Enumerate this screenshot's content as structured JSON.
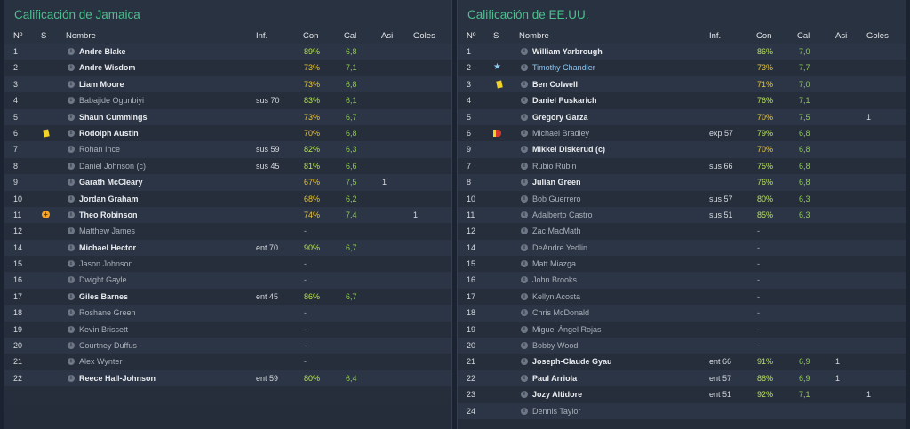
{
  "left": {
    "title": "Calificación de Jamaica",
    "headers": {
      "num": "Nº",
      "s": "S",
      "name": "Nombre",
      "inf": "Inf.",
      "con": "Con",
      "cal": "Cal",
      "asi": "Asi",
      "goles": "Goles"
    },
    "rows": [
      {
        "num": "1",
        "name": "Andre Blake",
        "active": true,
        "inf": "",
        "con": "89%",
        "con_color": "green",
        "cal": "6,8",
        "asi": "",
        "goles": "",
        "icon": ""
      },
      {
        "num": "2",
        "name": "Andre Wisdom",
        "active": true,
        "inf": "",
        "con": "73%",
        "con_color": "yellow",
        "cal": "7,1",
        "asi": "",
        "goles": "",
        "icon": ""
      },
      {
        "num": "3",
        "name": "Liam Moore",
        "active": true,
        "inf": "",
        "con": "73%",
        "con_color": "yellow",
        "cal": "6,8",
        "asi": "",
        "goles": "",
        "icon": ""
      },
      {
        "num": "4",
        "name": "Babajide Ogunbiyi",
        "active": false,
        "inf": "sus 70",
        "con": "83%",
        "con_color": "green",
        "cal": "6,1",
        "asi": "",
        "goles": "",
        "icon": ""
      },
      {
        "num": "5",
        "name": "Shaun Cummings",
        "active": true,
        "inf": "",
        "con": "73%",
        "con_color": "yellow",
        "cal": "6,7",
        "asi": "",
        "goles": "",
        "icon": ""
      },
      {
        "num": "6",
        "name": "Rodolph Austin",
        "active": true,
        "inf": "",
        "con": "70%",
        "con_color": "yellow",
        "cal": "6,8",
        "asi": "",
        "goles": "",
        "icon": "yellow-card"
      },
      {
        "num": "7",
        "name": "Rohan Ince",
        "active": false,
        "inf": "sus 59",
        "con": "82%",
        "con_color": "green",
        "cal": "6,3",
        "asi": "",
        "goles": "",
        "icon": ""
      },
      {
        "num": "8",
        "name": "Daniel Johnson (c)",
        "active": false,
        "inf": "sus 45",
        "con": "81%",
        "con_color": "green",
        "cal": "6,6",
        "asi": "",
        "goles": "",
        "icon": ""
      },
      {
        "num": "9",
        "name": "Garath McCleary",
        "active": true,
        "inf": "",
        "con": "67%",
        "con_color": "yellow",
        "cal": "7,5",
        "asi": "1",
        "goles": "",
        "icon": ""
      },
      {
        "num": "10",
        "name": "Jordan Graham",
        "active": true,
        "inf": "",
        "con": "68%",
        "con_color": "yellow",
        "cal": "6,2",
        "asi": "",
        "goles": "",
        "icon": ""
      },
      {
        "num": "11",
        "name": "Theo Robinson",
        "active": true,
        "inf": "",
        "con": "74%",
        "con_color": "yellow",
        "cal": "7,4",
        "asi": "",
        "goles": "1",
        "icon": "sub"
      },
      {
        "num": "12",
        "name": "Matthew James",
        "active": false,
        "inf": "",
        "con": "-",
        "con_color": "dash",
        "cal": "",
        "asi": "",
        "goles": "",
        "icon": ""
      },
      {
        "num": "14",
        "name": "Michael Hector",
        "active": true,
        "inf": "ent 70",
        "con": "90%",
        "con_color": "green",
        "cal": "6,7",
        "asi": "",
        "goles": "",
        "icon": ""
      },
      {
        "num": "15",
        "name": "Jason Johnson",
        "active": false,
        "inf": "",
        "con": "-",
        "con_color": "dash",
        "cal": "",
        "asi": "",
        "goles": "",
        "icon": ""
      },
      {
        "num": "16",
        "name": "Dwight Gayle",
        "active": false,
        "inf": "",
        "con": "-",
        "con_color": "dash",
        "cal": "",
        "asi": "",
        "goles": "",
        "icon": ""
      },
      {
        "num": "17",
        "name": "Giles Barnes",
        "active": true,
        "inf": "ent 45",
        "con": "86%",
        "con_color": "green",
        "cal": "6,7",
        "asi": "",
        "goles": "",
        "icon": ""
      },
      {
        "num": "18",
        "name": "Roshane Green",
        "active": false,
        "inf": "",
        "con": "-",
        "con_color": "dash",
        "cal": "",
        "asi": "",
        "goles": "",
        "icon": ""
      },
      {
        "num": "19",
        "name": "Kevin Brissett",
        "active": false,
        "inf": "",
        "con": "-",
        "con_color": "dash",
        "cal": "",
        "asi": "",
        "goles": "",
        "icon": ""
      },
      {
        "num": "20",
        "name": "Courtney Duffus",
        "active": false,
        "inf": "",
        "con": "-",
        "con_color": "dash",
        "cal": "",
        "asi": "",
        "goles": "",
        "icon": ""
      },
      {
        "num": "21",
        "name": "Alex Wynter",
        "active": false,
        "inf": "",
        "con": "-",
        "con_color": "dash",
        "cal": "",
        "asi": "",
        "goles": "",
        "icon": ""
      },
      {
        "num": "22",
        "name": "Reece Hall-Johnson",
        "active": true,
        "inf": "ent 59",
        "con": "80%",
        "con_color": "green",
        "cal": "6,4",
        "asi": "",
        "goles": "",
        "icon": ""
      }
    ]
  },
  "right": {
    "title": "Calificación de EE.UU.",
    "headers": {
      "num": "Nº",
      "s": "S",
      "name": "Nombre",
      "inf": "Inf.",
      "con": "Con",
      "cal": "Cal",
      "asi": "Asi",
      "goles": "Goles"
    },
    "rows": [
      {
        "num": "1",
        "name": "William Yarbrough",
        "active": true,
        "inf": "",
        "con": "86%",
        "con_color": "green",
        "cal": "7,0",
        "asi": "",
        "goles": "",
        "icon": ""
      },
      {
        "num": "2",
        "name": "Timothy Chandler",
        "active": "highlight",
        "inf": "",
        "con": "73%",
        "con_color": "yellow",
        "cal": "7,7",
        "asi": "",
        "goles": "",
        "icon": "star"
      },
      {
        "num": "3",
        "name": "Ben Colwell",
        "active": true,
        "inf": "",
        "con": "71%",
        "con_color": "yellow",
        "cal": "7,0",
        "asi": "",
        "goles": "",
        "icon": "yellow-card"
      },
      {
        "num": "4",
        "name": "Daniel Puskarich",
        "active": true,
        "inf": "",
        "con": "76%",
        "con_color": "green",
        "cal": "7,1",
        "asi": "",
        "goles": "",
        "icon": ""
      },
      {
        "num": "5",
        "name": "Gregory Garza",
        "active": true,
        "inf": "",
        "con": "70%",
        "con_color": "yellow",
        "cal": "7,5",
        "asi": "",
        "goles": "1",
        "icon": ""
      },
      {
        "num": "6",
        "name": "Michael Bradley",
        "active": false,
        "inf": "exp 57",
        "con": "79%",
        "con_color": "green",
        "cal": "6,8",
        "asi": "",
        "goles": "",
        "icon": "red-card"
      },
      {
        "num": "9",
        "name": "Mikkel Diskerud (c)",
        "active": true,
        "inf": "",
        "con": "70%",
        "con_color": "yellow",
        "cal": "6,8",
        "asi": "",
        "goles": "",
        "icon": ""
      },
      {
        "num": "7",
        "name": "Rubio Rubin",
        "active": false,
        "inf": "sus 66",
        "con": "75%",
        "con_color": "green",
        "cal": "6,8",
        "asi": "",
        "goles": "",
        "icon": ""
      },
      {
        "num": "8",
        "name": "Julian Green",
        "active": true,
        "inf": "",
        "con": "76%",
        "con_color": "green",
        "cal": "6,8",
        "asi": "",
        "goles": "",
        "icon": ""
      },
      {
        "num": "10",
        "name": "Bob Guerrero",
        "active": false,
        "inf": "sus 57",
        "con": "80%",
        "con_color": "green",
        "cal": "6,3",
        "asi": "",
        "goles": "",
        "icon": ""
      },
      {
        "num": "11",
        "name": "Adalberto Castro",
        "active": false,
        "inf": "sus 51",
        "con": "85%",
        "con_color": "green",
        "cal": "6,3",
        "asi": "",
        "goles": "",
        "icon": ""
      },
      {
        "num": "12",
        "name": "Zac MacMath",
        "active": false,
        "inf": "",
        "con": "-",
        "con_color": "dash",
        "cal": "",
        "asi": "",
        "goles": "",
        "icon": ""
      },
      {
        "num": "14",
        "name": "DeAndre Yedlin",
        "active": false,
        "inf": "",
        "con": "-",
        "con_color": "dash",
        "cal": "",
        "asi": "",
        "goles": "",
        "icon": ""
      },
      {
        "num": "15",
        "name": "Matt Miazga",
        "active": false,
        "inf": "",
        "con": "-",
        "con_color": "dash",
        "cal": "",
        "asi": "",
        "goles": "",
        "icon": ""
      },
      {
        "num": "16",
        "name": "John Brooks",
        "active": false,
        "inf": "",
        "con": "-",
        "con_color": "dash",
        "cal": "",
        "asi": "",
        "goles": "",
        "icon": ""
      },
      {
        "num": "17",
        "name": "Kellyn Acosta",
        "active": false,
        "inf": "",
        "con": "-",
        "con_color": "dash",
        "cal": "",
        "asi": "",
        "goles": "",
        "icon": ""
      },
      {
        "num": "18",
        "name": "Chris McDonald",
        "active": false,
        "inf": "",
        "con": "-",
        "con_color": "dash",
        "cal": "",
        "asi": "",
        "goles": "",
        "icon": ""
      },
      {
        "num": "19",
        "name": "Miguel Ángel Rojas",
        "active": false,
        "inf": "",
        "con": "-",
        "con_color": "dash",
        "cal": "",
        "asi": "",
        "goles": "",
        "icon": ""
      },
      {
        "num": "20",
        "name": "Bobby Wood",
        "active": false,
        "inf": "",
        "con": "-",
        "con_color": "dash",
        "cal": "",
        "asi": "",
        "goles": "",
        "icon": ""
      },
      {
        "num": "21",
        "name": "Joseph-Claude Gyau",
        "active": true,
        "inf": "ent 66",
        "con": "91%",
        "con_color": "green",
        "cal": "6,9",
        "asi": "1",
        "goles": "",
        "icon": ""
      },
      {
        "num": "22",
        "name": "Paul Arriola",
        "active": true,
        "inf": "ent 57",
        "con": "88%",
        "con_color": "green",
        "cal": "6,9",
        "asi": "1",
        "goles": "",
        "icon": ""
      },
      {
        "num": "23",
        "name": "Jozy Altidore",
        "active": true,
        "inf": "ent 51",
        "con": "92%",
        "con_color": "green",
        "cal": "7,1",
        "asi": "",
        "goles": "1",
        "icon": ""
      },
      {
        "num": "24",
        "name": "Dennis Taylor",
        "active": false,
        "inf": "",
        "con": "",
        "con_color": "dash",
        "cal": "",
        "asi": "",
        "goles": "",
        "icon": ""
      }
    ]
  }
}
